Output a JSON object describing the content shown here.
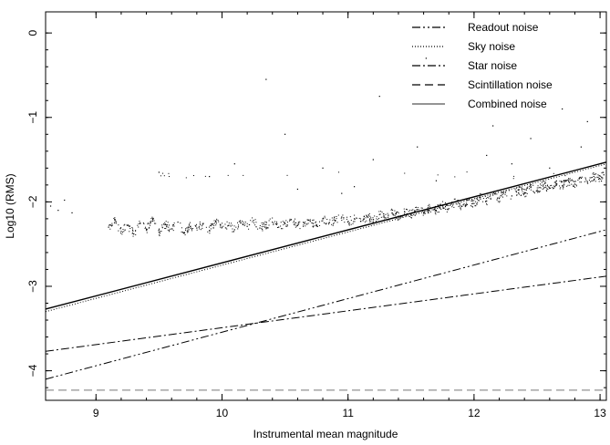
{
  "chart_data": {
    "type": "scatter",
    "title": "",
    "xlabel": "Instrumental mean magnitude",
    "ylabel": "Log10 (RMS)",
    "xlim": [
      8.6,
      13.05
    ],
    "ylim": [
      -4.35,
      0.25
    ],
    "x_ticks": [
      9,
      10,
      11,
      12,
      13
    ],
    "y_ticks": [
      0,
      -1,
      -2,
      -3,
      -4
    ],
    "grid": false,
    "legend_position": "top-right",
    "legend": [
      {
        "label": "Readout noise",
        "dash": "dash-dot-dot"
      },
      {
        "label": "Sky noise",
        "dash": "dotted"
      },
      {
        "label": "Star noise",
        "dash": "dash-dot"
      },
      {
        "label": "Scintillation noise",
        "dash": "dashed"
      },
      {
        "label": "Combined noise",
        "dash": "solid"
      }
    ],
    "series": [
      {
        "name": "Readout noise",
        "style": "dash-dot-dot",
        "x": [
          8.6,
          13.05
        ],
        "y": [
          -4.1,
          -2.33
        ]
      },
      {
        "name": "Sky noise",
        "style": "dotted",
        "x": [
          8.6,
          13.05
        ],
        "y": [
          -3.3,
          -1.55
        ]
      },
      {
        "name": "Star noise",
        "style": "dash-dot",
        "x": [
          8.6,
          13.05
        ],
        "y": [
          -3.77,
          -2.88
        ]
      },
      {
        "name": "Scintillation noise",
        "style": "dashed",
        "x": [
          8.6,
          13.05
        ],
        "y": [
          -4.23,
          -4.23
        ]
      },
      {
        "name": "Combined noise",
        "style": "solid",
        "x": [
          8.6,
          13.05
        ],
        "y": [
          -3.27,
          -1.53
        ]
      }
    ],
    "scatter_points": [
      [
        8.64,
        -2.05
      ],
      [
        8.7,
        -2.1
      ],
      [
        8.75,
        -1.98
      ],
      [
        8.81,
        -2.13
      ],
      [
        9.1,
        -2.3
      ],
      [
        9.15,
        -2.22
      ],
      [
        9.2,
        -2.35
      ],
      [
        9.25,
        -2.28
      ],
      [
        9.3,
        -2.38
      ],
      [
        9.35,
        -2.25
      ],
      [
        9.4,
        -2.33
      ],
      [
        9.45,
        -2.2
      ],
      [
        9.5,
        -2.36
      ],
      [
        9.55,
        -2.27
      ],
      [
        9.6,
        -2.32
      ],
      [
        9.65,
        -2.24
      ],
      [
        9.7,
        -2.37
      ],
      [
        9.75,
        -2.29
      ],
      [
        9.8,
        -2.31
      ],
      [
        9.85,
        -2.26
      ],
      [
        9.9,
        -2.34
      ],
      [
        9.95,
        -2.23
      ],
      [
        10.0,
        -2.3
      ],
      [
        10.05,
        -2.28
      ],
      [
        10.1,
        -2.33
      ],
      [
        10.15,
        -2.25
      ],
      [
        10.2,
        -2.29
      ],
      [
        10.25,
        -2.22
      ],
      [
        10.3,
        -2.31
      ],
      [
        10.35,
        -2.27
      ],
      [
        10.4,
        -2.24
      ],
      [
        10.45,
        -2.3
      ],
      [
        10.5,
        -2.26
      ],
      [
        10.55,
        -2.21
      ],
      [
        10.6,
        -2.28
      ],
      [
        10.65,
        -2.25
      ],
      [
        10.7,
        -2.23
      ],
      [
        10.75,
        -2.27
      ],
      [
        10.8,
        -2.2
      ],
      [
        10.85,
        -2.25
      ],
      [
        10.9,
        -2.22
      ],
      [
        10.95,
        -2.18
      ],
      [
        11.0,
        -2.24
      ],
      [
        11.05,
        -2.2
      ],
      [
        11.1,
        -2.23
      ],
      [
        11.15,
        -2.17
      ],
      [
        11.2,
        -2.21
      ],
      [
        11.25,
        -2.15
      ],
      [
        11.3,
        -2.19
      ],
      [
        11.35,
        -2.13
      ],
      [
        11.4,
        -2.17
      ],
      [
        11.45,
        -2.12
      ],
      [
        11.5,
        -2.15
      ],
      [
        11.55,
        -2.09
      ],
      [
        11.6,
        -2.13
      ],
      [
        11.65,
        -2.07
      ],
      [
        11.7,
        -2.1
      ],
      [
        11.75,
        -2.04
      ],
      [
        11.8,
        -2.08
      ],
      [
        11.85,
        -2.0
      ],
      [
        11.9,
        -2.05
      ],
      [
        11.95,
        -1.98
      ],
      [
        12.0,
        -2.02
      ],
      [
        12.05,
        -1.95
      ],
      [
        12.1,
        -1.99
      ],
      [
        12.15,
        -1.92
      ],
      [
        12.2,
        -1.96
      ],
      [
        12.25,
        -1.89
      ],
      [
        12.3,
        -1.93
      ],
      [
        12.35,
        -1.86
      ],
      [
        12.4,
        -1.9
      ],
      [
        12.45,
        -1.83
      ],
      [
        12.5,
        -1.87
      ],
      [
        12.55,
        -1.8
      ],
      [
        12.6,
        -1.84
      ],
      [
        12.65,
        -1.78
      ],
      [
        12.7,
        -1.81
      ],
      [
        12.75,
        -1.75
      ],
      [
        12.8,
        -1.79
      ],
      [
        12.85,
        -1.72
      ],
      [
        12.9,
        -1.76
      ],
      [
        12.95,
        -1.7
      ],
      [
        13.0,
        -1.73
      ],
      [
        13.03,
        -1.68
      ],
      [
        9.5,
        -1.65
      ],
      [
        9.9,
        -1.7
      ],
      [
        10.1,
        -1.55
      ],
      [
        10.5,
        -1.2
      ],
      [
        10.6,
        -1.85
      ],
      [
        10.8,
        -1.6
      ],
      [
        10.95,
        -1.9
      ],
      [
        11.05,
        -1.82
      ],
      [
        11.2,
        -1.5
      ],
      [
        11.25,
        -0.75
      ],
      [
        11.55,
        -1.35
      ],
      [
        11.7,
        -1.75
      ],
      [
        12.1,
        -1.45
      ],
      [
        12.15,
        -1.1
      ],
      [
        12.3,
        -1.55
      ],
      [
        12.45,
        -1.25
      ],
      [
        12.6,
        -1.6
      ],
      [
        12.7,
        -0.9
      ],
      [
        12.85,
        -1.35
      ],
      [
        12.9,
        -1.05
      ],
      [
        10.35,
        -0.55
      ],
      [
        11.62,
        -0.3
      ]
    ]
  }
}
